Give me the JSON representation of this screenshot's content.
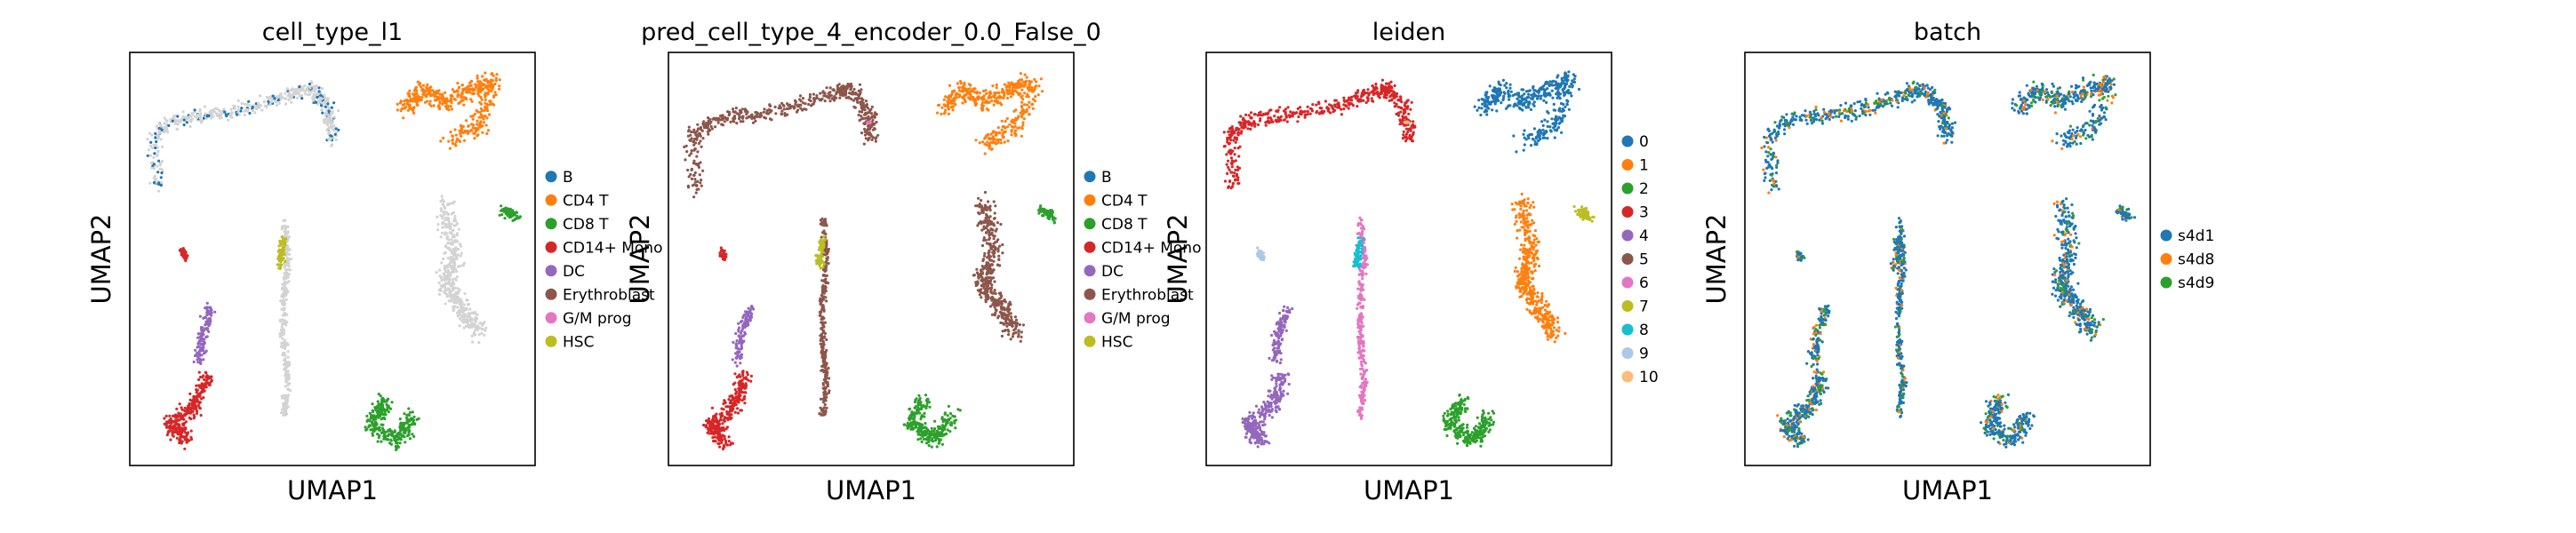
{
  "chart_data": [
    {
      "type": "scatter",
      "title": "cell_type_l1",
      "xlabel": "UMAP1",
      "ylabel": "UMAP2",
      "legend_position": "right",
      "categories": [
        "B",
        "CD4 T",
        "CD8 T",
        "CD14+ Mono",
        "DC",
        "Erythroblast",
        "G/M prog",
        "HSC"
      ],
      "colors": [
        "#1f77b4",
        "#ff7f0e",
        "#2ca02c",
        "#d62728",
        "#9467bd",
        "#8c564b",
        "#e377c2",
        "#bcbd22"
      ],
      "unlabeled_color": "#d3d3d3"
    },
    {
      "type": "scatter",
      "title": "pred_cell_type_4_encoder_0.0_False_0",
      "xlabel": "UMAP1",
      "ylabel": "UMAP2",
      "legend_position": "right",
      "categories": [
        "B",
        "CD4 T",
        "CD8 T",
        "CD14+ Mono",
        "DC",
        "Erythroblast",
        "G/M prog",
        "HSC"
      ],
      "colors": [
        "#1f77b4",
        "#ff7f0e",
        "#2ca02c",
        "#d62728",
        "#9467bd",
        "#8c564b",
        "#e377c2",
        "#bcbd22"
      ]
    },
    {
      "type": "scatter",
      "title": "leiden",
      "xlabel": "UMAP1",
      "ylabel": "UMAP2",
      "legend_position": "right",
      "categories": [
        "0",
        "1",
        "2",
        "3",
        "4",
        "5",
        "6",
        "7",
        "8",
        "9",
        "10"
      ],
      "colors": [
        "#1f77b4",
        "#ff7f0e",
        "#2ca02c",
        "#d62728",
        "#9467bd",
        "#8c564b",
        "#e377c2",
        "#bcbd22",
        "#17becf",
        "#aec7e8",
        "#ffbb78"
      ]
    },
    {
      "type": "scatter",
      "title": "batch",
      "xlabel": "UMAP1",
      "ylabel": "UMAP2",
      "legend_position": "right",
      "categories": [
        "s4d1",
        "s4d8",
        "s4d9"
      ],
      "colors": [
        "#1f77b4",
        "#ff7f0e",
        "#2ca02c"
      ]
    }
  ]
}
